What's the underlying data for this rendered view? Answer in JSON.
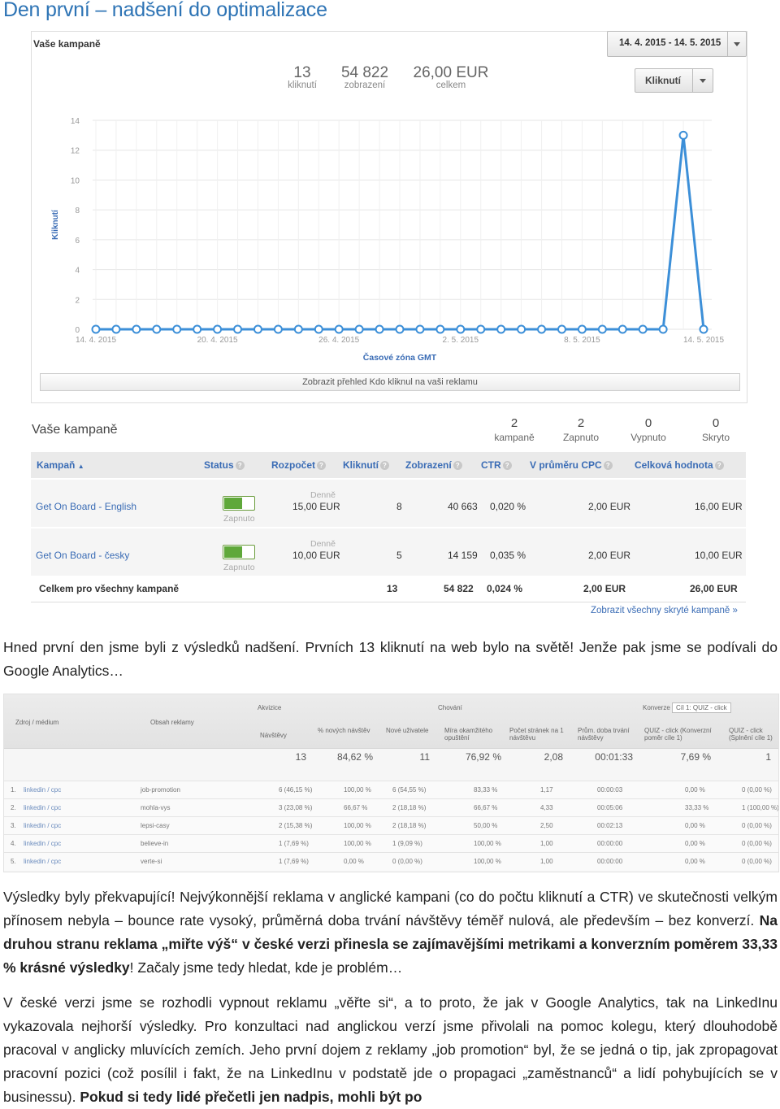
{
  "heading": "Den první – nadšení do optimalizace",
  "panel1": {
    "title": "Vaše kampaně",
    "date_range": "14. 4. 2015 - 14. 5. 2015",
    "stats": [
      {
        "value": "13",
        "label": "kliknutí"
      },
      {
        "value": "54 822",
        "label": "zobrazení"
      },
      {
        "value": "26,00 EUR",
        "label": "celkem"
      }
    ],
    "metric_button": "Kliknutí",
    "show_bar": "Zobrazit přehled Kdo kliknul na vaši reklamu"
  },
  "chart_data": {
    "type": "line",
    "ylabel": "Kliknutí",
    "xlabel": "Časové zóna GMT",
    "ylim": [
      0,
      14
    ],
    "yticks": [
      "0",
      "2",
      "4",
      "6",
      "8",
      "10",
      "12",
      "14"
    ],
    "xtick_labels": [
      "14. 4. 2015",
      "20. 4. 2015",
      "26. 4. 2015",
      "2. 5. 2015",
      "8. 5. 2015",
      "14. 5. 2015"
    ],
    "x": [
      "14.4.",
      "15.4.",
      "16.4.",
      "17.4.",
      "18.4.",
      "19.4.",
      "20.4.",
      "21.4.",
      "22.4.",
      "23.4.",
      "24.4.",
      "25.4.",
      "26.4.",
      "27.4.",
      "28.4.",
      "29.4.",
      "30.4.",
      "1.5.",
      "2.5.",
      "3.5.",
      "4.5.",
      "5.5.",
      "6.5.",
      "7.5.",
      "8.5.",
      "9.5.",
      "10.5.",
      "11.5.",
      "12.5.",
      "13.5.",
      "14.5."
    ],
    "series": [
      {
        "values": [
          0,
          0,
          0,
          0,
          0,
          0,
          0,
          0,
          0,
          0,
          0,
          0,
          0,
          0,
          0,
          0,
          0,
          0,
          0,
          0,
          0,
          0,
          0,
          0,
          0,
          0,
          0,
          0,
          0,
          13,
          0
        ]
      }
    ],
    "color": "#3c8fd8",
    "grid": true
  },
  "panel2": {
    "title": "Vaše kampaně",
    "stats": [
      {
        "value": "2",
        "label": "kampaně"
      },
      {
        "value": "2",
        "label": "Zapnuto"
      },
      {
        "value": "0",
        "label": "Vypnuto"
      },
      {
        "value": "0",
        "label": "Skryto"
      }
    ],
    "columns": [
      "Kampaň",
      "Status",
      "Rozpočet",
      "Kliknutí",
      "Zobrazení",
      "CTR",
      "V průměru CPC",
      "Celková hodnota"
    ],
    "rows": [
      {
        "name": "Get On Board - English",
        "status": "Zapnuto",
        "budget_label": "Denně",
        "budget": "15,00 EUR",
        "clicks": "8",
        "impressions": "40 663",
        "ctr": "0,020 %",
        "cpc": "2,00 EUR",
        "total": "16,00 EUR"
      },
      {
        "name": "Get On Board - česky",
        "status": "Zapnuto",
        "budget_label": "Denně",
        "budget": "10,00 EUR",
        "clicks": "5",
        "impressions": "14 159",
        "ctr": "0,035 %",
        "cpc": "2,00 EUR",
        "total": "10,00 EUR"
      }
    ],
    "total_row": {
      "name": "Celkem pro všechny kampaně",
      "clicks": "13",
      "impressions": "54 822",
      "ctr": "0,024 %",
      "cpc": "2,00 EUR",
      "total": "26,00 EUR"
    },
    "hidden_link": "Zobrazit všechny skryté kampaně »"
  },
  "para1": "Hned první den jsme byli z výsledků nadšení. Prvních 13 kliknutí na web bylo na světě! Jenže pak jsme se podívali do Google Analytics…",
  "analytics": {
    "col_source": "Zdroj / médium",
    "col_content": "Obsah reklamy",
    "group_acq": "Akvizice",
    "group_behavior": "Chování",
    "group_conv": "Konverze",
    "conv_select": "Cíl 1: QUIZ - click",
    "headers": [
      "Návštěvy",
      "% nových návštěv",
      "Nové uživatele",
      "Míra okamžitého opuštění",
      "Počet stránek na 1 návštěvu",
      "Prům. doba trvání návštěvy",
      "QUIZ - click (Konverzní poměr cíle 1)",
      "QUIZ - click (Splnění cíle 1)"
    ],
    "summary": [
      "13",
      "84,62 %",
      "11",
      "76,92 %",
      "2,08",
      "00:01:33",
      "7,69 %",
      "1"
    ],
    "rows": [
      {
        "n": "1.",
        "src": "linkedin / cpc",
        "content": "job-promotion",
        "v": [
          "6 (46,15 %)",
          "100,00 %",
          "6 (54,55 %)",
          "83,33 %",
          "1,17",
          "00:00:03",
          "0,00 %",
          "0 (0,00 %)"
        ]
      },
      {
        "n": "2.",
        "src": "linkedin / cpc",
        "content": "mohla-vys",
        "v": [
          "3 (23,08 %)",
          "66,67 %",
          "2 (18,18 %)",
          "66,67 %",
          "4,33",
          "00:05:06",
          "33,33 %",
          "1 (100,00 %)"
        ]
      },
      {
        "n": "3.",
        "src": "linkedin / cpc",
        "content": "lepsi-casy",
        "v": [
          "2 (15,38 %)",
          "100,00 %",
          "2 (18,18 %)",
          "50,00 %",
          "2,50",
          "00:02:13",
          "0,00 %",
          "0 (0,00 %)"
        ]
      },
      {
        "n": "4.",
        "src": "linkedin / cpc",
        "content": "believe-in",
        "v": [
          "1 (7,69 %)",
          "100,00 %",
          "1 (9,09 %)",
          "100,00 %",
          "1,00",
          "00:00:00",
          "0,00 %",
          "0 (0,00 %)"
        ]
      },
      {
        "n": "5.",
        "src": "linkedin / cpc",
        "content": "verte-si",
        "v": [
          "1 (7,69 %)",
          "0,00 %",
          "0 (0,00 %)",
          "100,00 %",
          "1,00",
          "00:00:00",
          "0,00 %",
          "0 (0,00 %)"
        ]
      }
    ]
  },
  "para2": {
    "t1": "Výsledky byly překvapující! Nejvýkonnější reklama v anglické kampani (co do počtu kliknutí a CTR) ve skutečnosti velkým přínosem nebyla – bounce rate vysoký, průměrná doba trvání návštěvy téměř nulová, ale především – bez konverzí. ",
    "b1": "Na druhou stranu reklama „miřte výš“ v české verzi přinesla se zajímavějšími metrikami a konverzním poměrem 33,33 % krásné výsledky",
    "t2": "! Začaly jsme tedy hledat, kde je problém…"
  },
  "para3": {
    "t1": "V české verzi jsme se rozhodli vypnout reklamu „věřte si“, a to proto, že jak v Google Analytics, tak na LinkedInu vykazovala nejhorší výsledky. Pro konzultaci nad anglickou verzí jsme přivolali na pomoc kolegu, který dlouhodobě pracoval v anglicky mluvících zemích. Jeho první dojem z reklamy „job promotion“ byl, že se jedná o tip, jak zpropagovat pracovní pozici (což posílil i fakt, že na LinkedInu v podstatě jde o propagaci „zaměstnanců“ a lidí pohybujících se v businessu). ",
    "b1": "Pokud si tedy lidé přečetli jen nadpis, mohli být po"
  }
}
